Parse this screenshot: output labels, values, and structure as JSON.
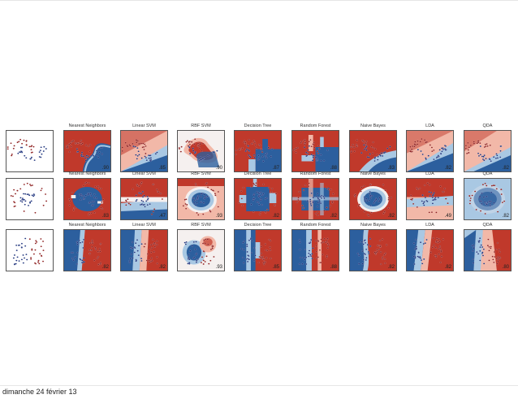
{
  "slide": {
    "footer_date": "dimanche 24 février 13",
    "classifiers": [
      "Nearest Neighbors",
      "Linear SVM",
      "RBF SVM",
      "Decision Tree",
      "Random Forest",
      "Naive Bayes",
      "LDA",
      "QDA"
    ],
    "rows": [
      {
        "dataset": "moons",
        "scores": [
          ".90",
          ".85",
          ".90",
          ".87",
          ".88",
          ".83",
          ".82",
          ".82"
        ]
      },
      {
        "dataset": "circles",
        "scores": [
          ".83",
          ".47",
          ".93",
          ".82",
          ".82",
          ".82",
          ".49",
          ".82"
        ]
      },
      {
        "dataset": "linear",
        "scores": [
          ".82",
          ".82",
          ".93",
          ".85",
          ".88",
          ".82",
          ".82",
          ".80"
        ]
      }
    ]
  },
  "colors": {
    "red": "#c0392b",
    "blue": "#2c5f9e",
    "red_light": "#f2b8a8",
    "blue_light": "#a9c8e3",
    "mid": "#f5f0ef"
  }
}
